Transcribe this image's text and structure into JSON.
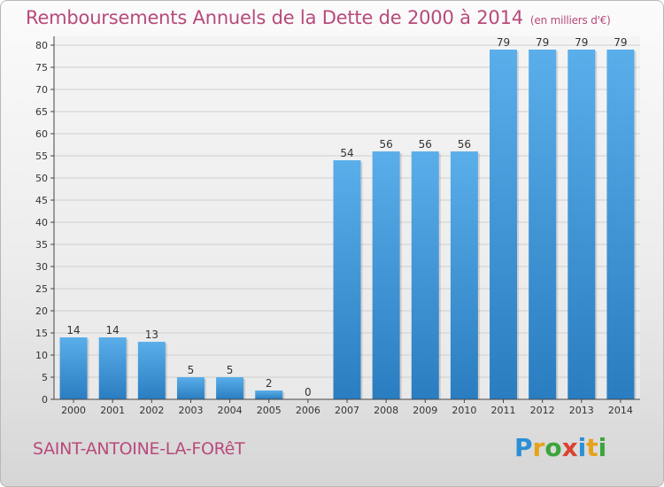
{
  "chart_data": {
    "type": "bar",
    "title": "Remboursements Annuels de la Dette de 2000 à 2014",
    "unit_label": "(en milliers d'€)",
    "categories": [
      "2000",
      "2001",
      "2002",
      "2003",
      "2004",
      "2005",
      "2006",
      "2007",
      "2008",
      "2009",
      "2010",
      "2011",
      "2012",
      "2013",
      "2014"
    ],
    "values": [
      14,
      14,
      13,
      5,
      5,
      2,
      0,
      54,
      56,
      56,
      56,
      79,
      79,
      79,
      79
    ],
    "ylim": [
      0,
      80
    ],
    "yticks": [
      0,
      5,
      10,
      15,
      20,
      25,
      30,
      35,
      40,
      45,
      50,
      55,
      60,
      65,
      70,
      75,
      80
    ],
    "grid": true,
    "bar_color_top": "#5aaeea",
    "bar_color_bottom": "#2a7dc0"
  },
  "footer": {
    "town": "SAINT-ANTOINE-LA-FORêT",
    "logo_letters": [
      "P",
      "r",
      "o",
      "x",
      "i",
      "t",
      "i"
    ]
  },
  "colors": {
    "title": "#b84a7c",
    "gridline": "#cfcfcf"
  }
}
